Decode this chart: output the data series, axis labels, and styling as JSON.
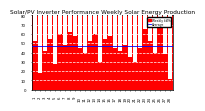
{
  "title": "Solar/PV Inverter Performance Weekly Solar Energy Production",
  "bar_color": "#ff0000",
  "avg_color": "#0000ff",
  "background_color": "#ffffff",
  "plot_bg_color": "#ff0000",
  "grid_color": "#ffffff",
  "weeks": [
    "1",
    "2",
    "3",
    "4",
    "5",
    "6",
    "7",
    "8",
    "9",
    "10",
    "11",
    "12",
    "13",
    "14",
    "15",
    "16",
    "17",
    "18",
    "19",
    "20",
    "21",
    "22",
    "23",
    "24",
    "25",
    "26",
    "27",
    "28"
  ],
  "values": [
    52,
    18,
    42,
    55,
    28,
    60,
    48,
    62,
    58,
    45,
    40,
    52,
    60,
    30,
    55,
    58,
    45,
    42,
    48,
    35,
    30,
    45,
    65,
    52,
    40,
    72,
    38,
    12
  ],
  "avg_line": 47,
  "ylim": [
    0,
    80
  ],
  "yticks": [
    0,
    10,
    20,
    30,
    40,
    50,
    60,
    70,
    80
  ],
  "legend_labels": [
    "Weekly kWh",
    "Average"
  ],
  "title_fontsize": 4.2,
  "tick_fontsize": 2.8,
  "label_fontsize": 3.2
}
